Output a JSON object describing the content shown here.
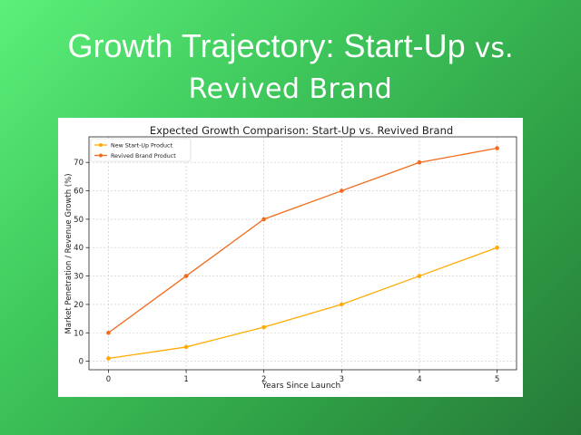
{
  "slide": {
    "title_line1": "Growth Trajectory: Start-Up",
    "title_vs": "vs.",
    "title_line2": "Revived Brand",
    "background_colors": [
      "#5cf07a",
      "#267a38"
    ]
  },
  "chart_data": {
    "type": "line",
    "title": "Expected Growth Comparison: Start-Up vs. Revived Brand",
    "xlabel": "Years Since Launch",
    "ylabel": "Market Penetration / Revenue Growth (%)",
    "x": [
      0,
      1,
      2,
      3,
      4,
      5
    ],
    "xticks": [
      "0",
      "1",
      "2",
      "3",
      "4",
      "5"
    ],
    "yticks": [
      "0",
      "10",
      "20",
      "30",
      "40",
      "50",
      "60",
      "70"
    ],
    "xlim": [
      -0.25,
      5.25
    ],
    "ylim": [
      -3,
      79
    ],
    "grid": true,
    "legend_position": "top-left",
    "series": [
      {
        "name": "New Start-Up Product",
        "values": [
          1,
          5,
          12,
          20,
          30,
          40
        ],
        "color": "#ffaa00"
      },
      {
        "name": "Revived Brand Product",
        "values": [
          10,
          30,
          50,
          60,
          70,
          75
        ],
        "color": "#f26b1d"
      }
    ]
  }
}
